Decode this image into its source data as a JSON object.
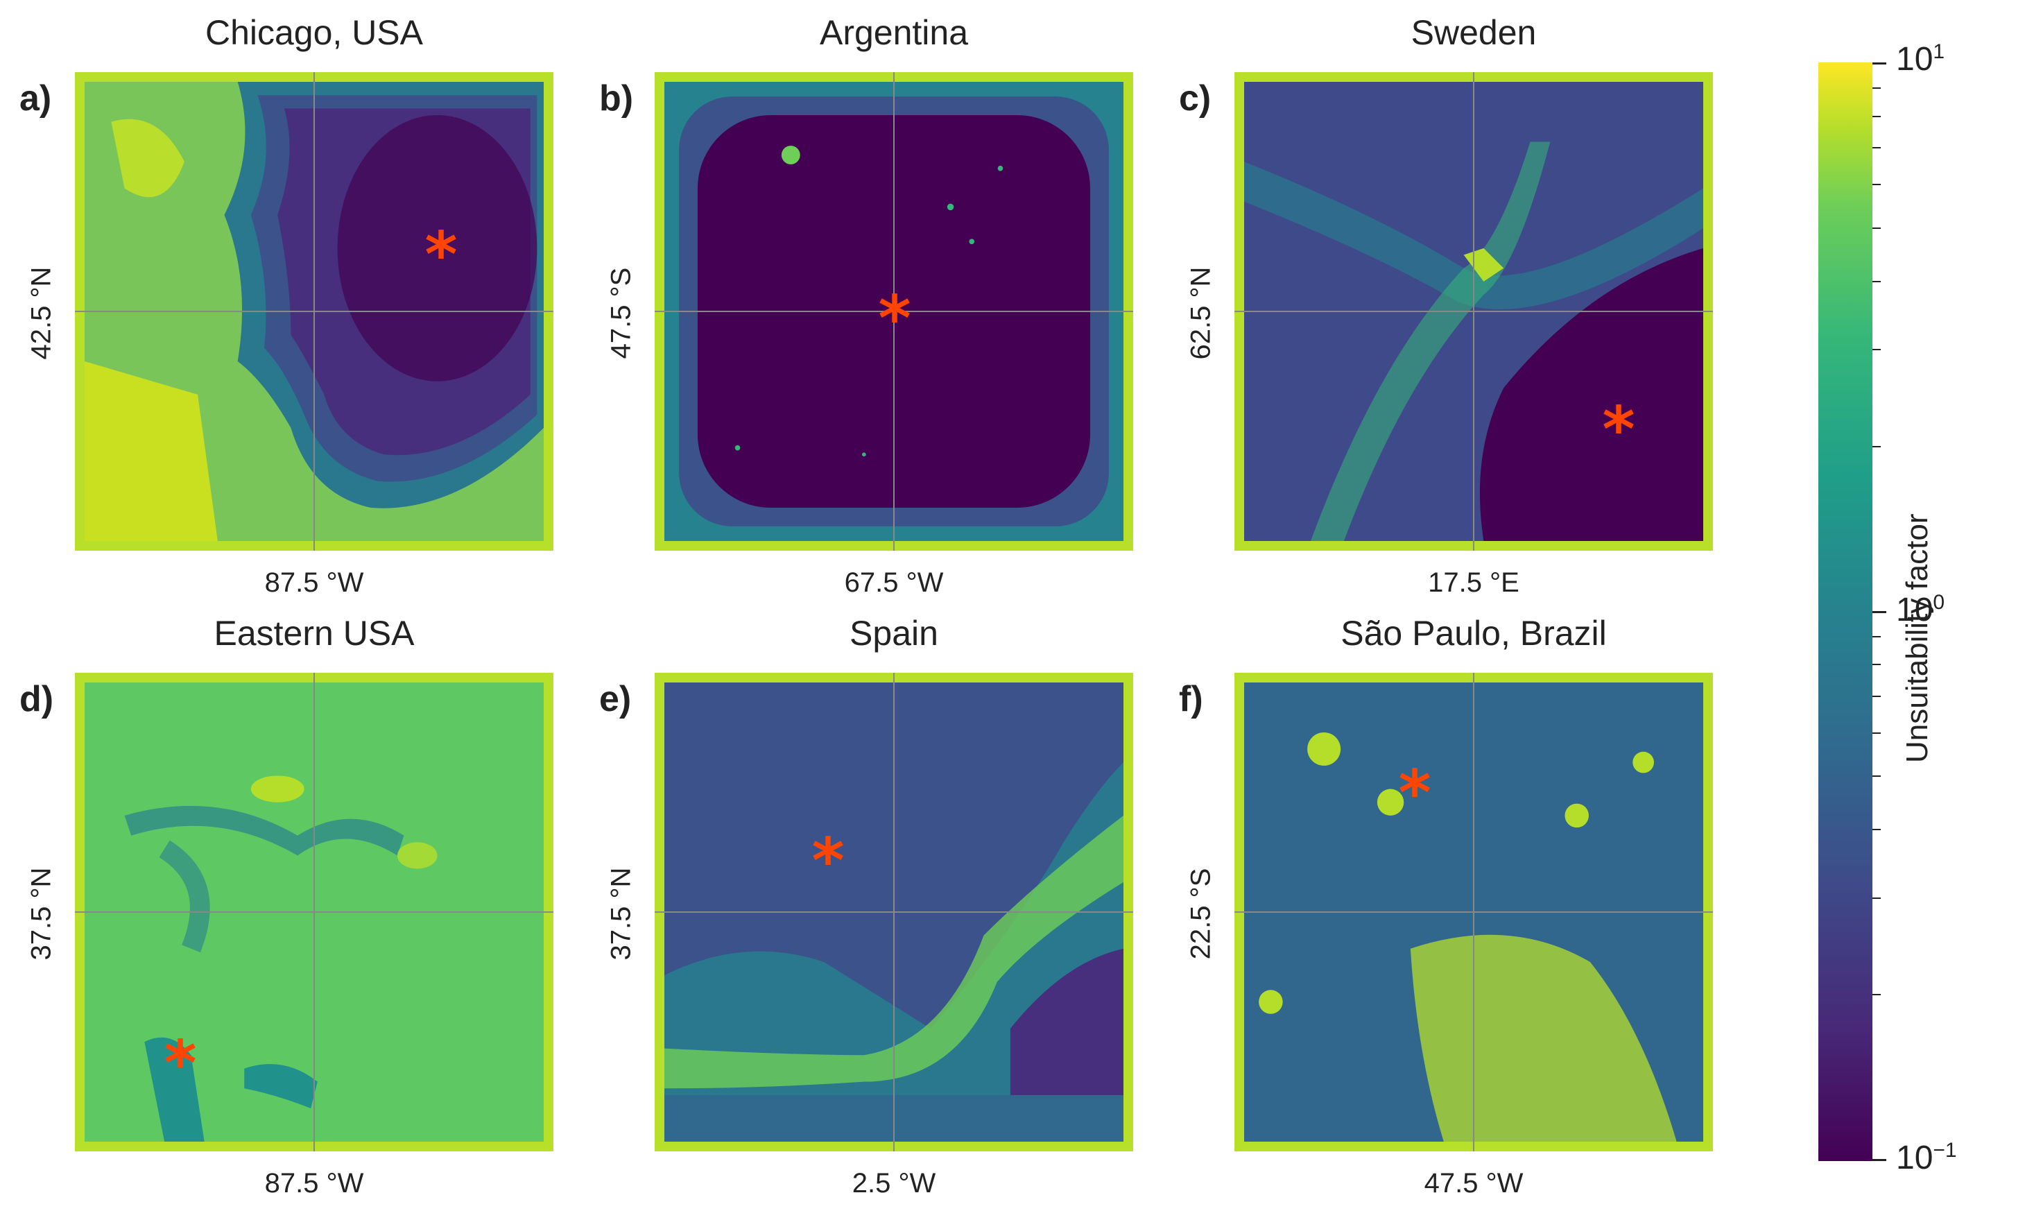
{
  "panels": [
    {
      "letter": "a)",
      "title": "Chicago, USA",
      "xlabel": "87.5 °W",
      "ylabel": "42.5 °N"
    },
    {
      "letter": "b)",
      "title": "Argentina",
      "xlabel": "67.5 °W",
      "ylabel": "47.5 °S"
    },
    {
      "letter": "c)",
      "title": "Sweden",
      "xlabel": "17.5 °E",
      "ylabel": "62.5 °N"
    },
    {
      "letter": "d)",
      "title": "Eastern USA",
      "xlabel": "87.5 °W",
      "ylabel": "37.5 °N"
    },
    {
      "letter": "e)",
      "title": "Spain",
      "xlabel": "2.5 °W",
      "ylabel": "37.5 °N"
    },
    {
      "letter": "f)",
      "title": "São Paulo, Brazil",
      "xlabel": "47.5 °W",
      "ylabel": "22.5 °S"
    }
  ],
  "colorbar": {
    "label": "Unsuitability factor",
    "scale": "log",
    "min": 0.1,
    "max": 10,
    "ticks": [
      {
        "base": "10",
        "exp": "1"
      },
      {
        "base": "10",
        "exp": "0"
      },
      {
        "base": "10",
        "exp": "−1"
      }
    ],
    "colormap": "viridis"
  },
  "colors": {
    "marker": "#ff4500",
    "frame": "#b8e02a",
    "gridline": "#888888"
  }
}
